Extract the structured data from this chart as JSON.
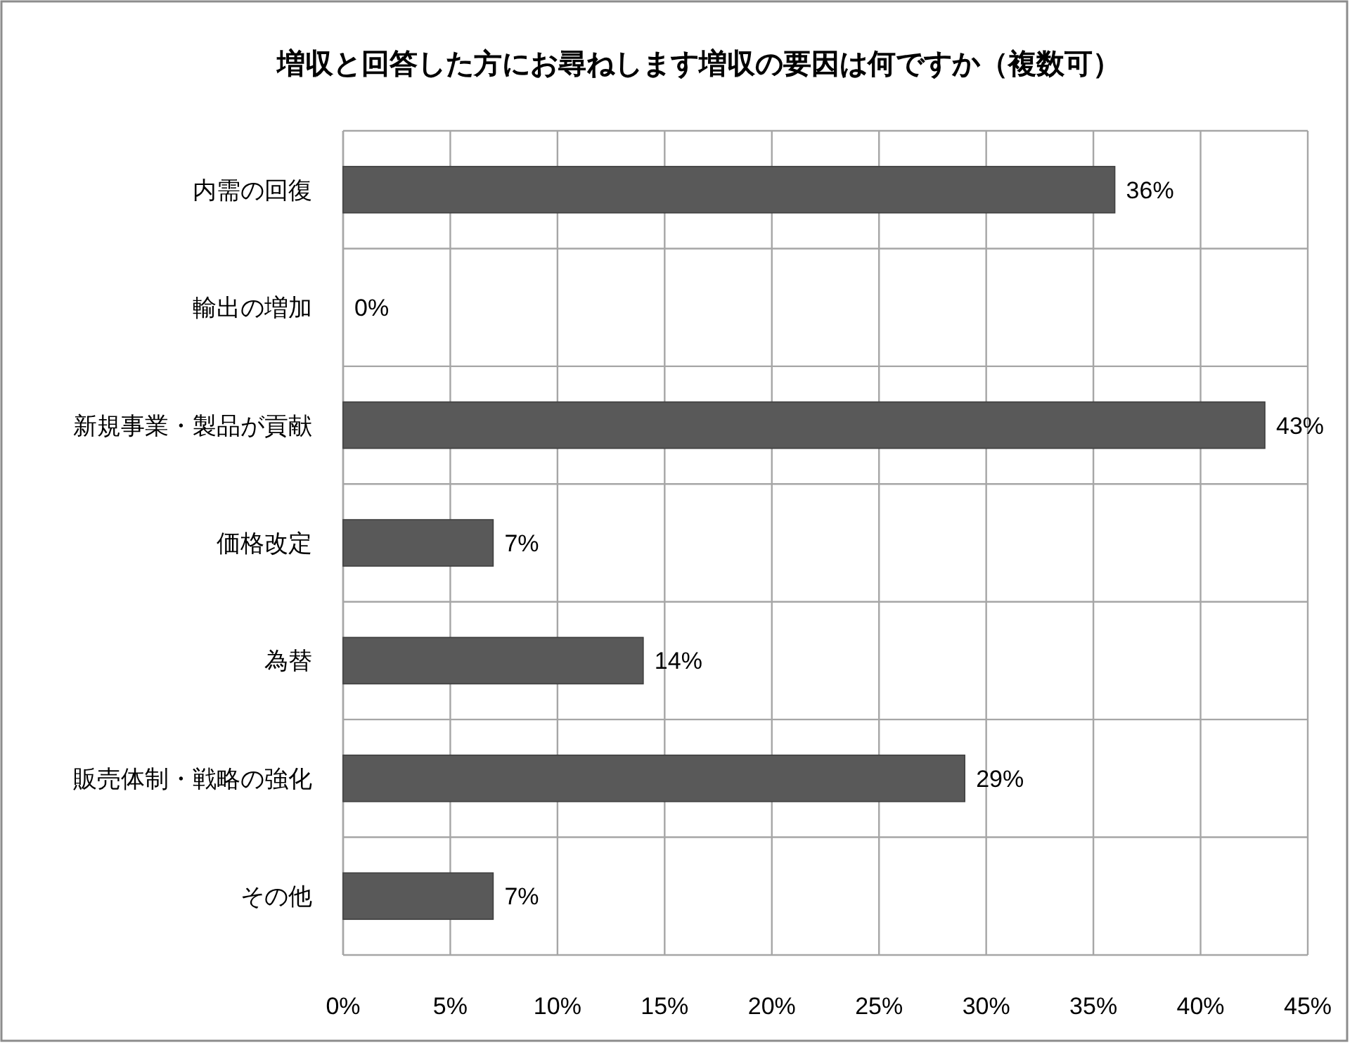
{
  "chart_data": {
    "type": "bar",
    "orientation": "horizontal",
    "title": "増収と回答した方にお尋ねします増収の要因は何ですか（複数可）",
    "categories": [
      "内需の回復",
      "輸出の増加",
      "新規事業・製品が貢献",
      "価格改定",
      "為替",
      "販売体制・戦略の強化",
      "その他"
    ],
    "values": [
      36,
      0,
      43,
      7,
      14,
      29,
      7
    ],
    "value_labels": [
      "36%",
      "0%",
      "43%",
      "7%",
      "14%",
      "29%",
      "7%"
    ],
    "color": "#595959",
    "xlim": [
      0,
      45
    ],
    "xticks": [
      {
        "value": 0,
        "label": "0%"
      },
      {
        "value": 5,
        "label": "5%"
      },
      {
        "value": 10,
        "label": "10%"
      },
      {
        "value": 15,
        "label": "15%"
      },
      {
        "value": 20,
        "label": "20%"
      },
      {
        "value": 25,
        "label": "25%"
      },
      {
        "value": 30,
        "label": "30%"
      },
      {
        "value": 35,
        "label": "35%"
      },
      {
        "value": 40,
        "label": "40%"
      },
      {
        "value": 45,
        "label": "45%"
      }
    ],
    "grid": true
  }
}
